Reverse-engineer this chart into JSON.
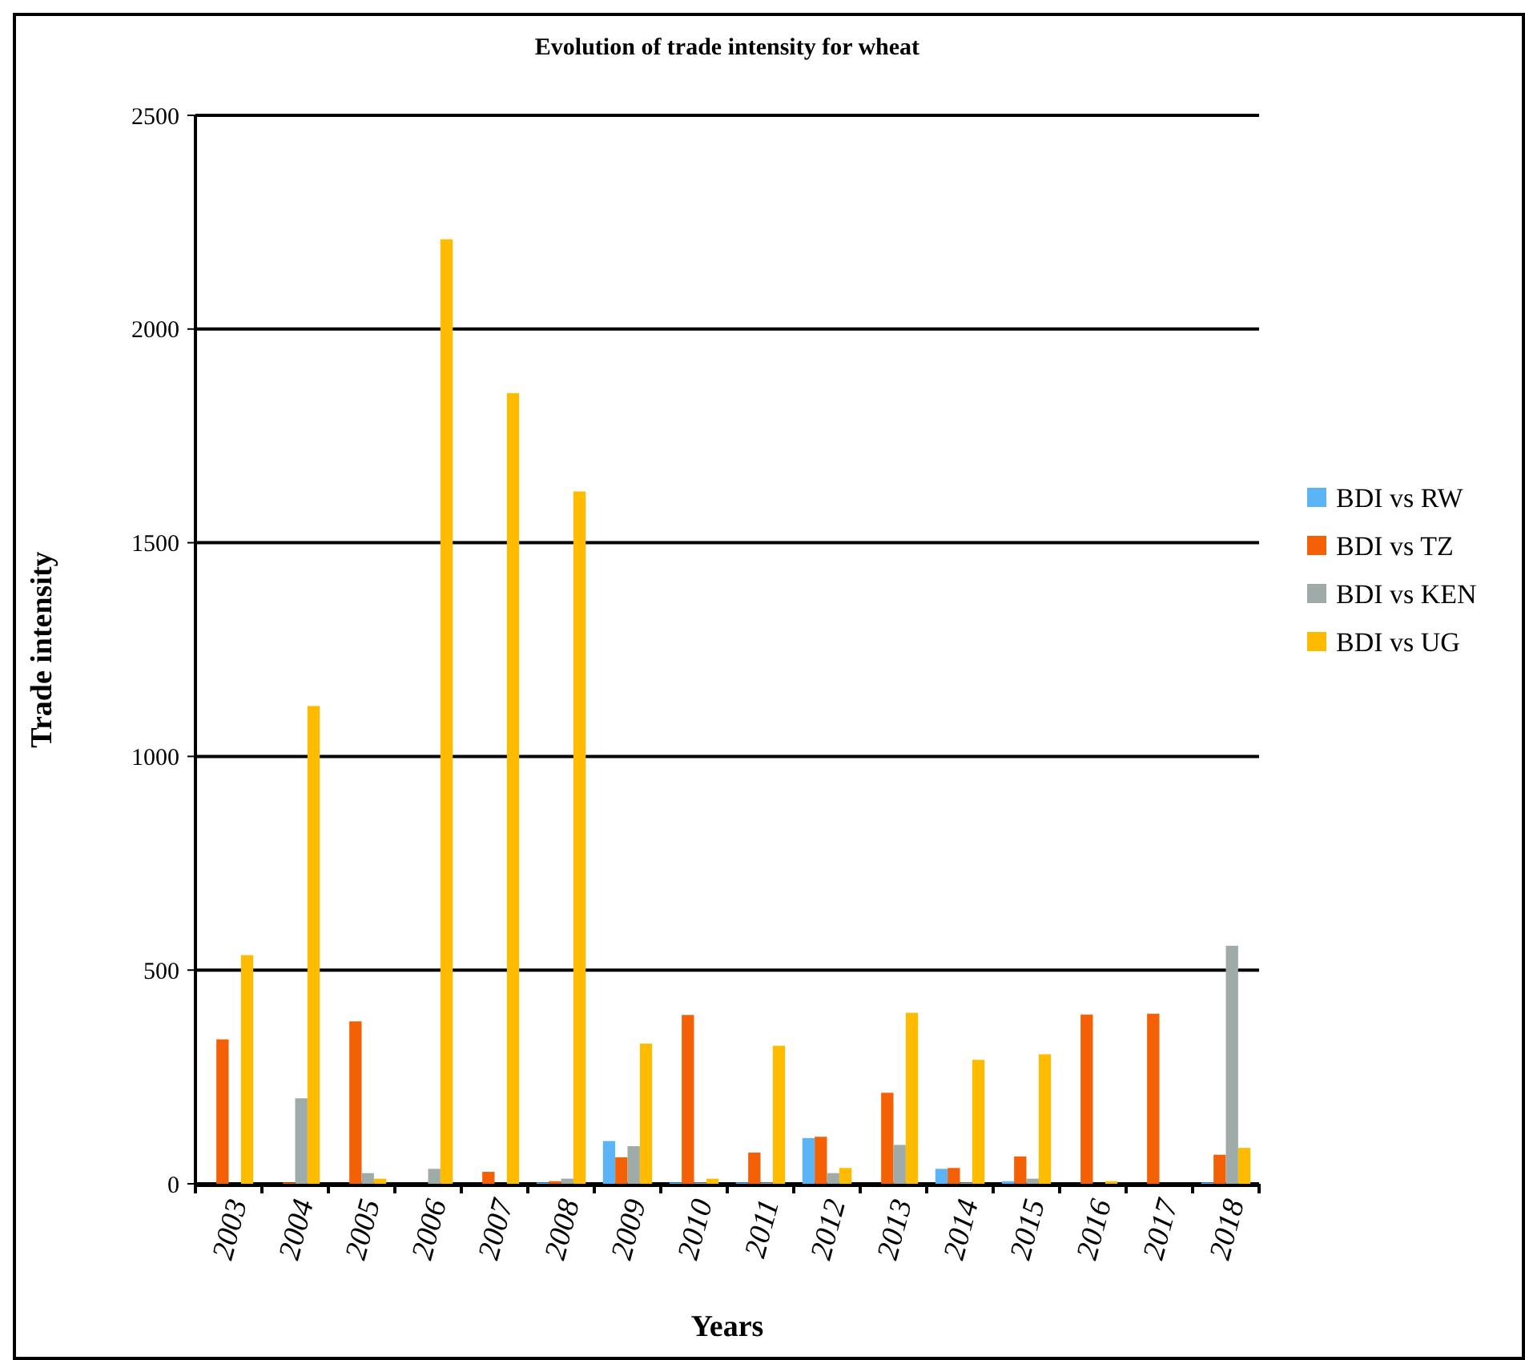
{
  "chart_data": {
    "type": "bar",
    "title": "Evolution of trade intensity for wheat",
    "xlabel": "Years",
    "ylabel": "Trade intensity",
    "categories": [
      "2003",
      "2004",
      "2005",
      "2006",
      "2007",
      "2008",
      "2009",
      "2010",
      "2011",
      "2012",
      "2013",
      "2014",
      "2015",
      "2016",
      "2017",
      "2018"
    ],
    "series": [
      {
        "name": "BDI vs RW",
        "color": "#5bb4f5",
        "values": [
          0,
          0,
          0,
          0,
          0,
          3,
          100,
          3,
          3,
          107,
          0,
          35,
          6,
          0,
          0,
          3
        ]
      },
      {
        "name": "BDI vs TZ",
        "color": "#f36005",
        "values": [
          338,
          3,
          380,
          0,
          28,
          6,
          62,
          395,
          73,
          110,
          213,
          37,
          64,
          396,
          398,
          68
        ]
      },
      {
        "name": "BDI vs KEN",
        "color": "#9eaba8",
        "values": [
          0,
          200,
          25,
          35,
          0,
          12,
          88,
          3,
          3,
          25,
          91,
          3,
          12,
          0,
          0,
          557
        ]
      },
      {
        "name": "BDI vs UG",
        "color": "#ffbb00",
        "values": [
          535,
          1118,
          12,
          2210,
          1850,
          1620,
          328,
          12,
          323,
          37,
          400,
          290,
          303,
          6,
          0,
          84
        ]
      }
    ],
    "ylim": [
      0,
      2500
    ],
    "yticks": [
      0,
      500,
      1000,
      1500,
      2000,
      2500
    ],
    "grid": "y",
    "legend": "right"
  }
}
